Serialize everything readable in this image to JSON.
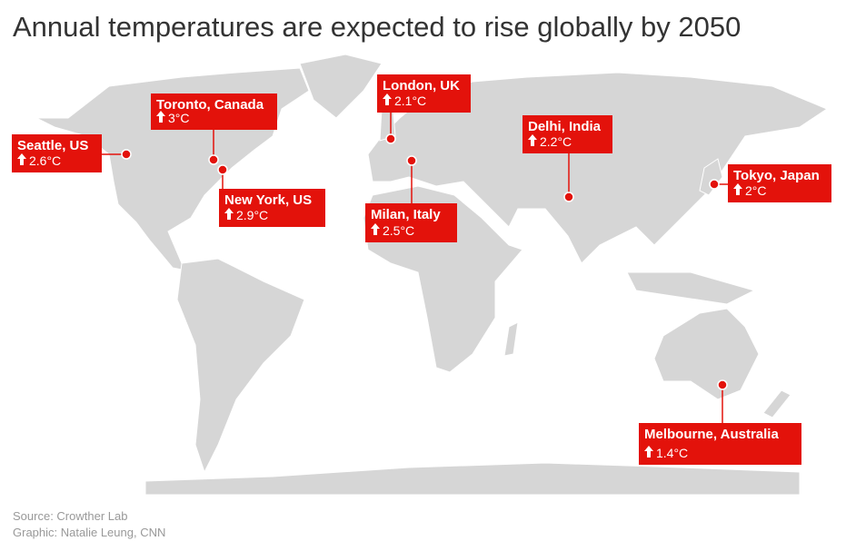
{
  "header": {
    "title": "Annual temperatures are expected to rise globally by 2050"
  },
  "callouts": [
    {
      "city": "Toronto, Canada",
      "change": "3°C"
    },
    {
      "city": "Seattle, US",
      "change": "2.6°C"
    },
    {
      "city": "New York, US",
      "change": "2.9°C"
    },
    {
      "city": "London, UK",
      "change": "2.1°C"
    },
    {
      "city": "Milan, Italy",
      "change": "2.5°C"
    },
    {
      "city": "Delhi, India",
      "change": "2.2°C"
    },
    {
      "city": "Tokyo, Japan",
      "change": "2°C"
    },
    {
      "city": "Melbourne, Australia",
      "change": "1.4°C"
    }
  ],
  "footer": {
    "source": "Source: Crowther Lab",
    "credit": "Graphic: Natalie Leung, CNN"
  }
}
